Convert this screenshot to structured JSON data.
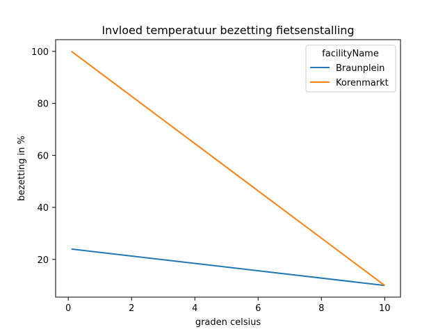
{
  "chart_data": {
    "type": "line",
    "title": "Invloed temperatuur bezetting fietsenstalling",
    "xlabel": "graden celsius",
    "ylabel": "bezetting in %",
    "xlim": [
      -0.4,
      10.5
    ],
    "ylim": [
      5.5,
      104.5
    ],
    "xticks": [
      0,
      2,
      4,
      6,
      8,
      10
    ],
    "yticks": [
      20,
      40,
      60,
      80,
      100
    ],
    "grid": false,
    "legend": {
      "title": "facilityName",
      "placement": "top-right"
    },
    "series": [
      {
        "name": "Braunplein",
        "color": "#1f77b4",
        "points": [
          [
            0.1,
            24
          ],
          [
            10,
            10
          ]
        ]
      },
      {
        "name": "Korenmarkt",
        "color": "#ff7f0e",
        "points": [
          [
            0.1,
            100
          ],
          [
            10,
            10
          ]
        ]
      }
    ]
  }
}
